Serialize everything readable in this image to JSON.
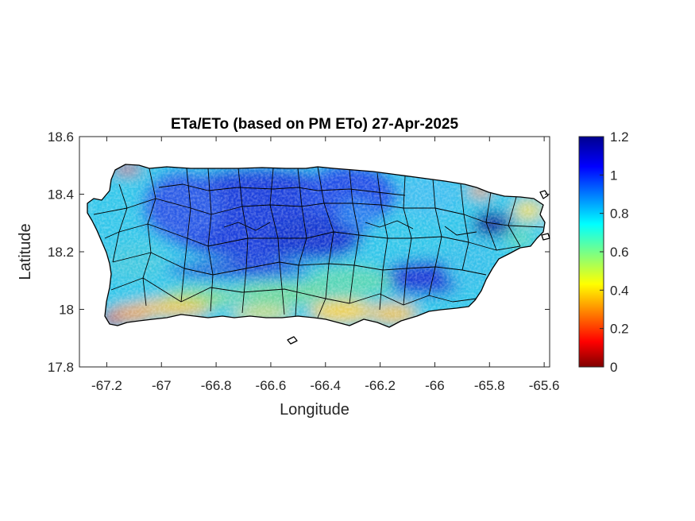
{
  "map": {
    "title": "ETa/ETo (based on PM ETo) 27-Apr-2025",
    "xlabel": "Longitude",
    "ylabel": "Latitude",
    "xlim": [
      -67.3,
      -65.58
    ],
    "ylim": [
      17.8,
      18.6
    ],
    "xticks": [
      -67.2,
      -67,
      -66.8,
      -66.6,
      -66.4,
      -66.2,
      -66,
      -65.8,
      -65.6
    ],
    "xtick_labels": [
      "-67.2",
      "-67",
      "-66.8",
      "-66.6",
      "-66.4",
      "-66.2",
      "-66",
      "-65.8",
      "-65.6"
    ],
    "yticks": [
      17.8,
      18,
      18.2,
      18.4,
      18.6
    ],
    "ytick_labels": [
      "17.8",
      "18",
      "18.2",
      "18.4",
      "18.6"
    ]
  },
  "colorbar": {
    "min": 0,
    "max": 1.2,
    "colormap": "jet",
    "ticks": [
      0,
      0.2,
      0.4,
      0.6,
      0.8,
      1,
      1.2
    ],
    "tick_labels": [
      "0",
      "0.2",
      "0.4",
      "0.6",
      "0.8",
      "1",
      "1.2"
    ]
  },
  "colors": {
    "north_interior": "#1f3fd8",
    "west_coast": "#34c8e8",
    "south_coast": "#f2d23a",
    "southwest_tip": "#c81e10",
    "municipality_borders": "#000000"
  }
}
